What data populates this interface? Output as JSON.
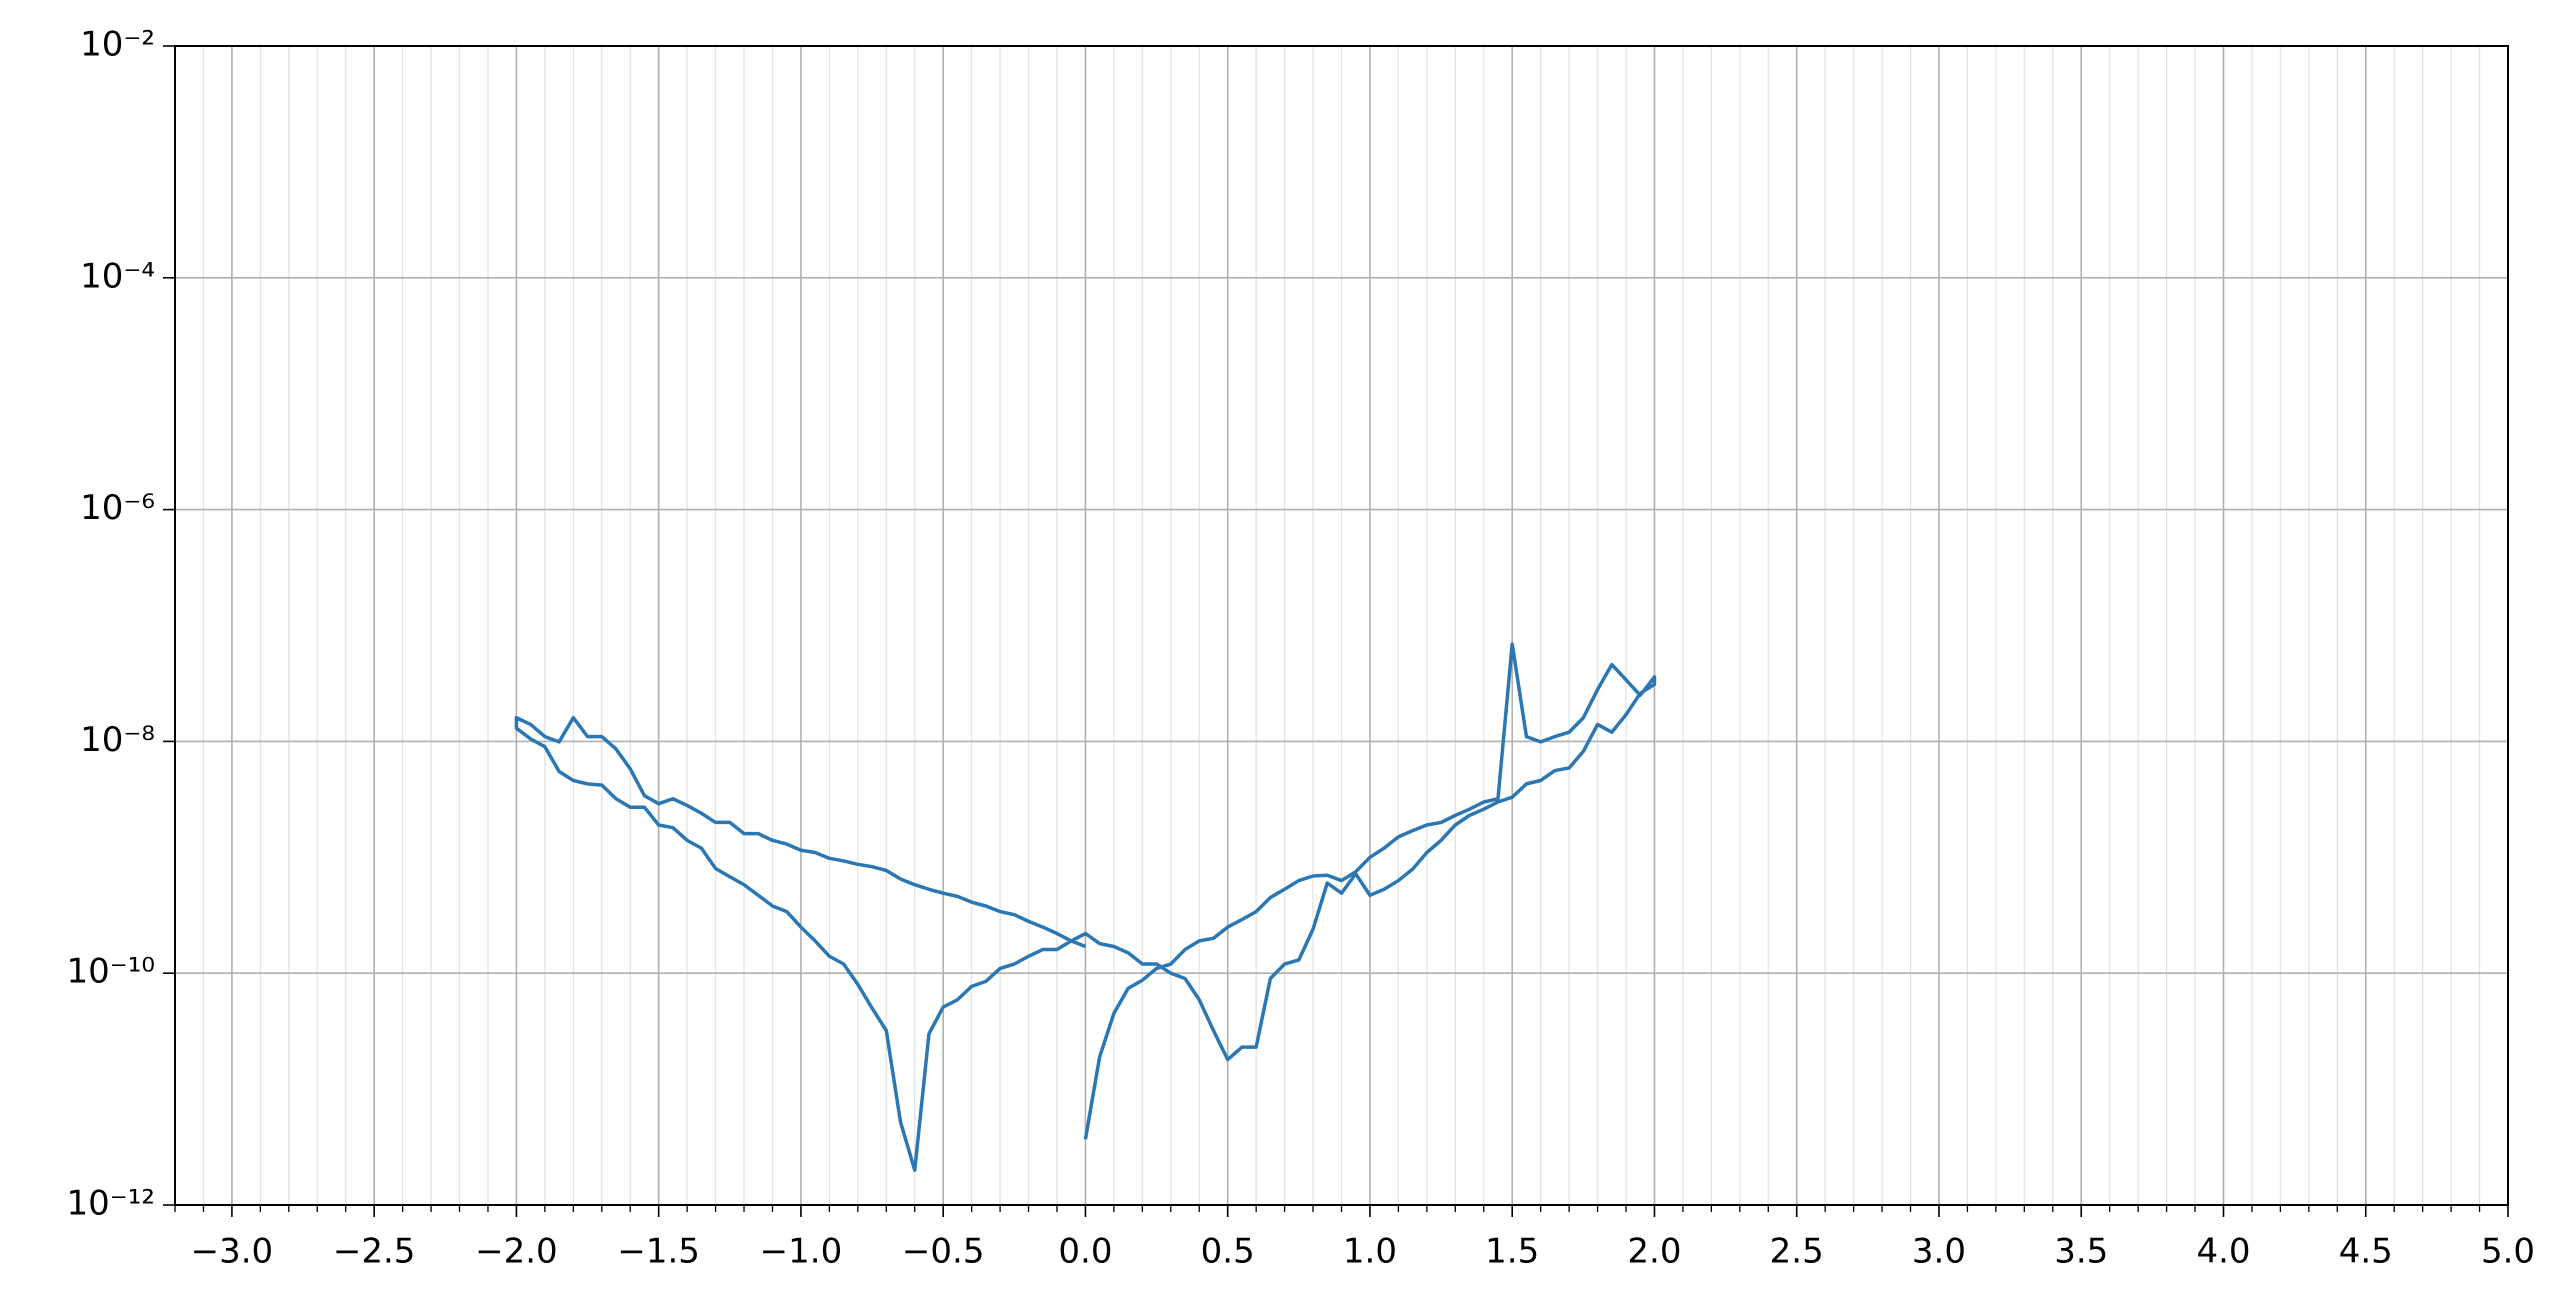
{
  "chart_data": {
    "type": "line",
    "x": [
      0,
      0.05,
      0.1,
      0.15,
      0.2,
      0.25,
      0.3,
      0.35,
      0.4,
      0.45,
      0.5,
      0.55,
      0.6,
      0.65,
      0.7,
      0.75,
      0.8,
      0.85,
      0.9,
      0.95,
      1.0,
      1.05,
      1.1,
      1.15,
      1.2,
      1.25,
      1.3,
      1.35,
      1.4,
      1.45,
      1.5,
      1.55,
      1.6,
      1.65,
      1.7,
      1.75,
      1.8,
      1.85,
      1.9,
      1.95,
      2.0,
      2.0,
      1.95,
      1.9,
      1.85,
      1.8,
      1.75,
      1.7,
      1.65,
      1.6,
      1.55,
      1.5,
      1.45,
      1.4,
      1.35,
      1.3,
      1.25,
      1.2,
      1.15,
      1.1,
      1.05,
      1.0,
      0.95,
      0.9,
      0.85,
      0.8,
      0.75,
      0.7,
      0.65,
      0.6,
      0.55,
      0.5,
      0.45,
      0.4,
      0.35,
      0.3,
      0.25,
      0.2,
      0.15,
      0.1,
      0.05,
      0.0,
      -0.05,
      -0.1,
      -0.15,
      -0.2,
      -0.25,
      -0.3,
      -0.35,
      -0.4,
      -0.45,
      -0.5,
      -0.55,
      -0.6,
      -0.65,
      -0.7,
      -0.75,
      -0.8,
      -0.85,
      -0.9,
      -0.95,
      -1.0,
      -1.05,
      -1.1,
      -1.15,
      -1.2,
      -1.25,
      -1.3,
      -1.35,
      -1.4,
      -1.45,
      -1.5,
      -1.55,
      -1.6,
      -1.65,
      -1.7,
      -1.75,
      -1.8,
      -1.85,
      -1.9,
      -1.95,
      -2.0,
      -2.0,
      -1.95,
      -1.9,
      -1.85,
      -1.8,
      -1.75,
      -1.7,
      -1.65,
      -1.6,
      -1.55,
      -1.5,
      -1.45,
      -1.4,
      -1.35,
      -1.3,
      -1.25,
      -1.2,
      -1.15,
      -1.1,
      -1.05,
      -1.0,
      -0.95,
      -0.9,
      -0.85,
      -0.8,
      -0.75,
      -0.7,
      -0.65,
      -0.6,
      -0.55,
      -0.5,
      -0.45,
      -0.4,
      -0.35,
      -0.3,
      -0.25,
      -0.2,
      -0.15,
      -0.1,
      -0.05,
      0.0
    ],
    "values": [
      3.7e-12,
      1.9e-11,
      4.5e-11,
      7.4e-11,
      8.7e-11,
      1.1e-10,
      1.2e-10,
      1.6e-10,
      1.9e-10,
      2e-10,
      2.5e-10,
      2.9e-10,
      3.4e-10,
      4.5e-10,
      5.3e-10,
      6.3e-10,
      6.9e-10,
      7e-10,
      6.3e-10,
      7.5e-10,
      1e-09,
      1.2e-09,
      1.5e-09,
      1.7e-09,
      1.9e-09,
      2e-09,
      2.3e-09,
      2.6e-09,
      3e-09,
      3.2e-09,
      6.9e-08,
      1.1e-08,
      9.9e-09,
      1.1e-08,
      1.2e-08,
      1.6e-08,
      2.8e-08,
      4.6e-08,
      3.4e-08,
      2.5e-08,
      3.6e-08,
      3.1e-08,
      2.6e-08,
      1.7e-08,
      1.2e-08,
      1.4e-08,
      8.2e-09,
      5.9e-09,
      5.6e-09,
      4.6e-09,
      4.3e-09,
      3.3e-09,
      3e-09,
      2.6e-09,
      2.3e-09,
      1.9e-09,
      1.4e-09,
      1.1e-09,
      7.9e-10,
      6.3e-10,
      5.3e-10,
      4.7e-10,
      7.2e-10,
      4.9e-10,
      6e-10,
      2.4e-10,
      1.3e-10,
      1.2e-10,
      9e-11,
      2.3e-11,
      2.3e-11,
      1.8e-11,
      3.2e-11,
      5.9e-11,
      9e-11,
      1e-10,
      1.2e-10,
      1.2e-10,
      1.5e-10,
      1.7e-10,
      1.8e-10,
      2.2e-10,
      1.9e-10,
      2.2e-10,
      2.5e-10,
      2.8e-10,
      3.2e-10,
      3.4e-10,
      3.8e-10,
      4.1e-10,
      4.6e-10,
      4.9e-10,
      5.3e-10,
      5.8e-10,
      6.5e-10,
      7.7e-10,
      8.3e-10,
      8.7e-10,
      9.3e-10,
      9.8e-10,
      1.1e-09,
      1.15e-09,
      1.3e-09,
      1.4e-09,
      1.6e-09,
      1.6e-09,
      2e-09,
      2e-09,
      2.4e-09,
      2.8e-09,
      3.2e-09,
      2.9e-09,
      3.4e-09,
      5.8e-09,
      8.6e-09,
      1.1e-08,
      1.1e-08,
      1.6e-08,
      9.9e-09,
      1.1e-08,
      1.4e-08,
      1.6e-08,
      1.3e-08,
      1.05e-08,
      9e-09,
      5.5e-09,
      4.6e-09,
      4.3e-09,
      4.2e-09,
      3.2e-09,
      2.7e-09,
      2.7e-09,
      1.9e-09,
      1.8e-09,
      1.4e-09,
      1.2e-09,
      8e-10,
      6.8e-10,
      5.8e-10,
      4.7e-10,
      3.8e-10,
      3.4e-10,
      2.5e-10,
      1.9e-10,
      1.4e-10,
      1.2e-10,
      8e-11,
      5e-11,
      3.2e-11,
      5.2e-12,
      2e-12,
      3e-11,
      5.1e-11,
      5.9e-11,
      7.7e-11,
      8.5e-11,
      1.1e-10,
      1.2e-10,
      1.4e-10,
      1.6e-10,
      1.6e-10,
      1.9e-10,
      1.7e-10
    ],
    "color": "#2a77b4",
    "xlim": [
      -3.2,
      5.0
    ],
    "xticks": [
      {
        "value": -3.0,
        "label": "−3.0"
      },
      {
        "value": -2.5,
        "label": "−2.5"
      },
      {
        "value": -2.0,
        "label": "−2.0"
      },
      {
        "value": -1.5,
        "label": "−1.5"
      },
      {
        "value": -1.0,
        "label": "−1.0"
      },
      {
        "value": -0.5,
        "label": "−0.5"
      },
      {
        "value": 0,
        "label": "0.0"
      },
      0.5,
      {
        "value": 1,
        "label": "1.0"
      },
      1.5,
      {
        "value": 2,
        "label": "2.0"
      },
      2.5,
      {
        "value": 3,
        "label": "3.0"
      },
      3.5,
      {
        "value": 4,
        "label": "4.0"
      },
      4.5,
      {
        "value": 5,
        "label": "5.0"
      }
    ],
    "ylim": [
      1e-12,
      0.01
    ],
    "yticks": [
      {
        "value": 1e-12,
        "label": "10⁻¹²"
      },
      {
        "value": 1e-10,
        "label": "10⁻¹⁰"
      },
      {
        "value": 1e-08,
        "label": "10⁻⁸"
      },
      {
        "value": 1e-06,
        "label": "10⁻⁶"
      },
      {
        "value": 0.0001,
        "label": "10⁻⁴"
      },
      {
        "value": 0.01,
        "label": "10⁻²"
      }
    ],
    "y_log": true,
    "grid": true,
    "minor_grid": true
  }
}
